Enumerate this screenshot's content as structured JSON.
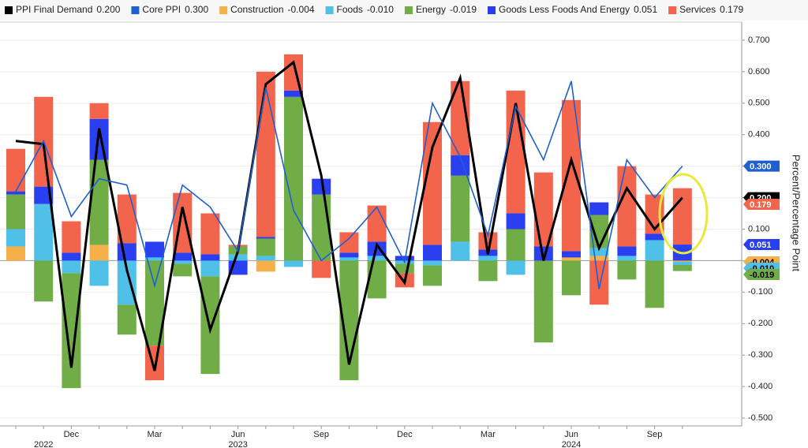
{
  "chart_data": {
    "type": "bar",
    "y_axis_label": "Percent/Percentage Point",
    "categories": [
      null,
      null,
      "Dec",
      null,
      null,
      "Mar",
      null,
      null,
      "Jun",
      null,
      null,
      "Sep",
      null,
      null,
      "Dec",
      null,
      null,
      "Mar",
      null,
      null,
      "Jun",
      null,
      null,
      "Sep",
      null
    ],
    "years": [
      null,
      "2022",
      null,
      null,
      null,
      null,
      null,
      null,
      "2023",
      null,
      null,
      null,
      null,
      null,
      null,
      null,
      null,
      null,
      null,
      null,
      "2024",
      null,
      null,
      null,
      null
    ],
    "ylim": [
      -0.52,
      0.73
    ],
    "yticks": [
      {
        "value": 0.7,
        "label": "0.700"
      },
      {
        "value": 0.6,
        "label": "0.600"
      },
      {
        "value": 0.5,
        "label": "0.500"
      },
      {
        "value": 0.4,
        "label": "0.400"
      },
      {
        "value": 0.3,
        "label": "0.300"
      },
      {
        "value": 0.2,
        "label": "0.200"
      },
      {
        "value": 0.1,
        "label": "0.100"
      },
      {
        "value": 0,
        "label": "0.000"
      },
      {
        "value": -0.1,
        "label": "-0.100"
      },
      {
        "value": -0.2,
        "label": "-0.200"
      },
      {
        "value": -0.3,
        "label": "-0.300"
      },
      {
        "value": -0.4,
        "label": "-0.400"
      },
      {
        "value": -0.5,
        "label": "-0.500"
      }
    ],
    "grid": true,
    "stacked": true,
    "series": [
      {
        "name": "PPI Final Demand",
        "type": "line",
        "color": "#000000",
        "values": [
          0.38,
          0.37,
          -0.34,
          0.42,
          -0.03,
          -0.35,
          0.17,
          -0.22,
          0.03,
          0.56,
          0.63,
          0.27,
          -0.33,
          0.05,
          -0.07,
          0.36,
          0.58,
          0.02,
          0.5,
          0.0,
          0.32,
          0.04,
          0.23,
          0.1,
          0.2
        ],
        "value_labels": [
          null,
          null,
          null,
          null,
          null,
          null,
          null,
          null,
          null,
          null,
          null,
          null,
          null,
          null,
          null,
          null,
          null,
          null,
          null,
          null,
          null,
          null,
          null,
          null,
          "0.200"
        ]
      },
      {
        "name": "Core PPI",
        "type": "line",
        "color": "#1f5fd0",
        "values": [
          0.22,
          0.38,
          0.14,
          0.26,
          0.24,
          -0.08,
          0.24,
          0.17,
          0.03,
          0.55,
          0.16,
          0.0,
          0.07,
          0.17,
          -0.005,
          0.5,
          0.33,
          0.08,
          0.49,
          0.32,
          0.57,
          -0.09,
          0.32,
          0.2,
          0.3
        ],
        "value_labels": [
          null,
          null,
          null,
          null,
          null,
          null,
          null,
          null,
          null,
          null,
          null,
          null,
          null,
          null,
          null,
          null,
          null,
          null,
          null,
          null,
          null,
          null,
          null,
          null,
          "0.300"
        ]
      },
      {
        "name": "Construction",
        "type": "bar",
        "color": "#f5b04a",
        "values": [
          0.045,
          0,
          0,
          0.05,
          0,
          0,
          0,
          0,
          0,
          -0.035,
          0,
          0,
          0,
          0,
          0,
          0,
          0,
          0,
          0,
          0,
          0.01,
          0.015,
          0,
          0,
          -0.004
        ],
        "value_labels": [
          null,
          null,
          null,
          null,
          null,
          null,
          null,
          null,
          null,
          null,
          null,
          null,
          null,
          null,
          null,
          null,
          null,
          null,
          null,
          null,
          null,
          null,
          null,
          null,
          "-0.004"
        ]
      },
      {
        "name": "Foods",
        "type": "bar",
        "color": "#4fc1e9",
        "values": [
          0.055,
          0.18,
          -0.04,
          -0.08,
          -0.14,
          0.01,
          -0.01,
          -0.05,
          0.02,
          0.015,
          -0.02,
          0,
          0.01,
          0.015,
          -0.01,
          -0.015,
          0.06,
          0.015,
          -0.045,
          0,
          0,
          0.025,
          0.015,
          0.065,
          -0.01
        ],
        "value_labels": [
          null,
          null,
          null,
          null,
          null,
          null,
          null,
          null,
          null,
          null,
          null,
          null,
          null,
          null,
          null,
          null,
          null,
          null,
          null,
          null,
          null,
          null,
          null,
          null,
          "-0.010"
        ]
      },
      {
        "name": "Energy",
        "type": "bar",
        "color": "#70ad47",
        "values": [
          0.11,
          -0.13,
          -0.365,
          0.27,
          -0.095,
          -0.27,
          -0.04,
          -0.31,
          0.025,
          0.055,
          0.52,
          0.21,
          -0.38,
          -0.12,
          -0.03,
          -0.065,
          0.21,
          -0.065,
          0.1,
          -0.26,
          -0.11,
          0.105,
          -0.06,
          -0.15,
          -0.019
        ],
        "value_labels": [
          null,
          null,
          null,
          null,
          null,
          null,
          null,
          null,
          null,
          null,
          null,
          null,
          null,
          null,
          null,
          null,
          null,
          null,
          null,
          null,
          null,
          null,
          null,
          null,
          "-0.019"
        ]
      },
      {
        "name": "Goods Less Foods And Energy",
        "type": "bar",
        "color": "#2a3ff0",
        "values": [
          0.01,
          0.055,
          0.025,
          0.13,
          0.055,
          0.05,
          0.025,
          0.02,
          -0.045,
          0.005,
          0.02,
          0.05,
          0.015,
          0.045,
          0.015,
          0.05,
          0.065,
          0.02,
          0.05,
          0.045,
          0.02,
          0.04,
          0.03,
          0.02,
          0.051
        ],
        "value_labels": [
          null,
          null,
          null,
          null,
          null,
          null,
          null,
          null,
          null,
          null,
          null,
          null,
          null,
          null,
          null,
          null,
          null,
          null,
          null,
          null,
          null,
          null,
          null,
          null,
          "0.051"
        ]
      },
      {
        "name": "Services",
        "type": "bar",
        "color": "#f2644c",
        "values": [
          0.135,
          0.285,
          0.1,
          0.05,
          0.155,
          -0.11,
          0.19,
          0.13,
          0.005,
          0.525,
          0.115,
          -0.055,
          0.065,
          0.115,
          -0.045,
          0.39,
          0.235,
          0.055,
          0.39,
          0.235,
          0.48,
          -0.14,
          0.255,
          0.125,
          0.179
        ],
        "value_labels": [
          null,
          null,
          null,
          null,
          null,
          null,
          null,
          null,
          null,
          null,
          null,
          null,
          null,
          null,
          null,
          null,
          null,
          null,
          null,
          null,
          null,
          null,
          null,
          null,
          "0.179"
        ]
      }
    ]
  }
}
